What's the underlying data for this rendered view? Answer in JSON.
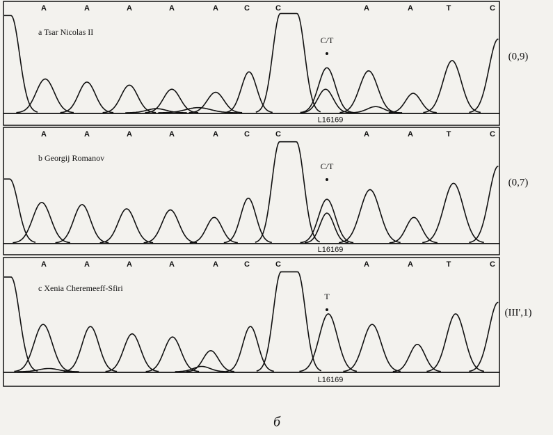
{
  "panels": [
    {
      "bases": [
        "A",
        "A",
        "A",
        "A",
        "A",
        "C",
        "C",
        "A",
        "A",
        "T",
        "C"
      ],
      "label": "a Tsar Nicolas II",
      "marker": "C/T",
      "position": "L16169",
      "annotation": "(0,9)"
    },
    {
      "bases": [
        "A",
        "A",
        "A",
        "A",
        "A",
        "C",
        "C",
        "A",
        "A",
        "T",
        "C"
      ],
      "label": "b Georgij Romanov",
      "marker": "C/T",
      "position": "L16169",
      "annotation": "(0,7)"
    },
    {
      "bases": [
        "A",
        "A",
        "A",
        "A",
        "A",
        "C",
        "C",
        "A",
        "A",
        "T",
        "C"
      ],
      "label": "c Xenia Cheremeeff-Sfiri",
      "marker": "T",
      "position": "L16169",
      "annotation": "(III',1)"
    }
  ],
  "caption": "б"
}
